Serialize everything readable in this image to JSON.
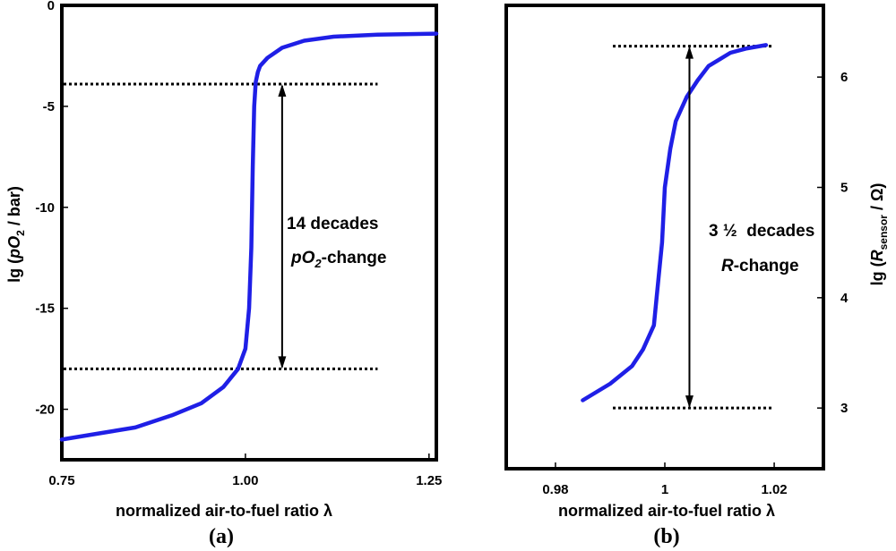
{
  "chart_data": [
    {
      "type": "line",
      "panel_label": "(a)",
      "xlabel": "normalized air-to-fuel ratio λ",
      "ylabel": {
        "prefix": "lg (",
        "p": "pO",
        "sub": "2",
        "suffix": " / bar)"
      },
      "xlim": [
        0.75,
        1.26
      ],
      "ylim": [
        -22.5,
        0
      ],
      "xticks": [
        0.75,
        1.0,
        1.25
      ],
      "xtick_labels": [
        "0.75",
        "1.00",
        "1.25"
      ],
      "yticks": [
        0,
        -5,
        -10,
        -15,
        -20
      ],
      "ytick_labels": [
        "0",
        "-5",
        "-10",
        "-15",
        "-20"
      ],
      "series": [
        {
          "name": "pO2",
          "color": "#1f1fe6",
          "x": [
            0.75,
            0.8,
            0.85,
            0.9,
            0.94,
            0.97,
            0.99,
            1.0,
            1.005,
            1.008,
            1.01,
            1.012,
            1.014,
            1.017,
            1.02,
            1.03,
            1.05,
            1.08,
            1.12,
            1.18,
            1.26
          ],
          "y": [
            -21.5,
            -21.2,
            -20.9,
            -20.3,
            -19.7,
            -18.9,
            -18.0,
            -17.0,
            -15.0,
            -12.0,
            -8.0,
            -5.0,
            -3.8,
            -3.3,
            -3.0,
            -2.6,
            -2.1,
            -1.75,
            -1.55,
            -1.45,
            -1.4
          ]
        }
      ],
      "reference_lines": [
        -3.9,
        -18.0
      ],
      "reference_x_range": [
        0.75,
        1.18
      ],
      "arrow": {
        "x": 1.05,
        "from": -3.9,
        "to": -18.0
      },
      "annotation": {
        "line1": "14 decades",
        "line2_italic": "pO",
        "line2_sub": "2",
        "line2_rest": "-change"
      }
    },
    {
      "type": "line",
      "panel_label": "(b)",
      "xlabel": "normalized air-to-fuel ratio λ",
      "ylabel": {
        "prefix": "lg (",
        "r": "R",
        "sub": "sensor",
        "suffix": " / Ω)"
      },
      "xlim": [
        0.971,
        1.029
      ],
      "ylim": [
        2.45,
        6.65
      ],
      "xticks": [
        0.98,
        1.0,
        1.02
      ],
      "xtick_labels": [
        "0.98",
        "1",
        "1.02"
      ],
      "yticks": [
        3,
        4,
        5,
        6
      ],
      "ytick_labels": [
        "3",
        "4",
        "5",
        "6"
      ],
      "series": [
        {
          "name": "R_sensor",
          "color": "#1f1fe6",
          "x": [
            0.985,
            0.99,
            0.994,
            0.996,
            0.998,
            0.9985,
            0.9995,
            1.0,
            1.001,
            1.002,
            1.004,
            1.006,
            1.008,
            1.01,
            1.012,
            1.015,
            1.0185
          ],
          "y": [
            3.07,
            3.22,
            3.38,
            3.53,
            3.75,
            4.0,
            4.5,
            5.0,
            5.35,
            5.6,
            5.82,
            5.97,
            6.1,
            6.16,
            6.22,
            6.26,
            6.29
          ]
        }
      ],
      "reference_lines": [
        6.28,
        3.0
      ],
      "reference_x_range": [
        0.9905,
        1.0195
      ],
      "arrow": {
        "x": 1.0045,
        "from": 6.28,
        "to": 3.0
      },
      "annotation": {
        "line1": "3 ½  decades",
        "line2_italic": "R",
        "line2_rest": "-change"
      }
    }
  ]
}
